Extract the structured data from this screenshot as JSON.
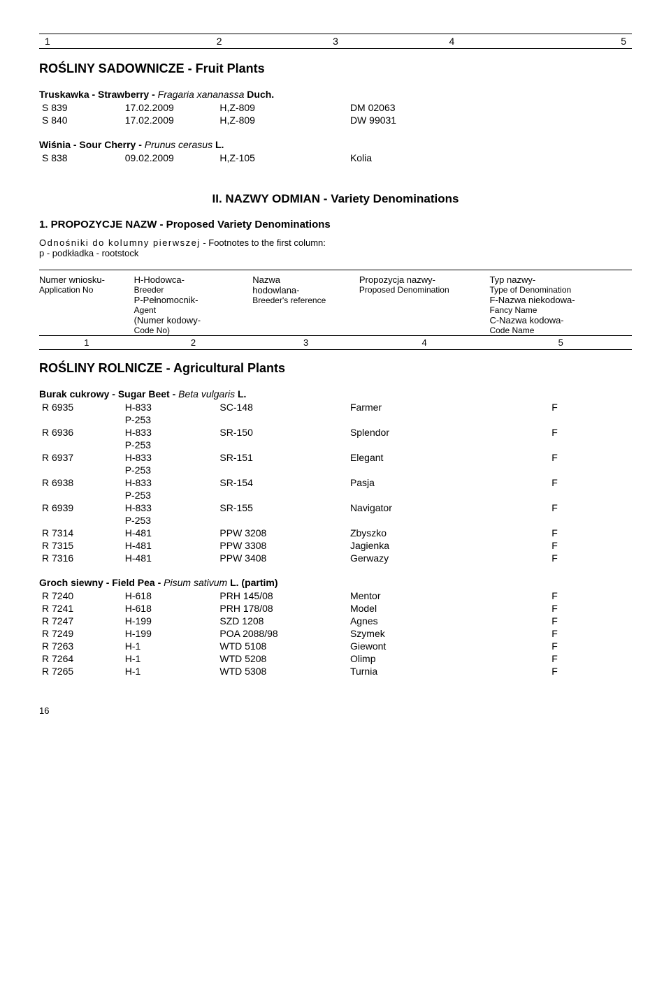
{
  "header_cols": [
    "1",
    "2",
    "3",
    "4",
    "5"
  ],
  "section1": {
    "title": "ROŚLINY SADOWNICZE - Fruit Plants",
    "species": [
      {
        "name_prefix": "Truskawka - Strawberry - ",
        "latin": "Fragaria xananassa",
        "latin_suffix": " Duch.",
        "rows": [
          {
            "c1": "S 839",
            "c2": "17.02.2009",
            "c3": "H,Z-809",
            "c4": "DM 02063",
            "c5": ""
          },
          {
            "c1": "S 840",
            "c2": "17.02.2009",
            "c3": "H,Z-809",
            "c4": "DW 99031",
            "c5": ""
          }
        ]
      },
      {
        "name_prefix": "Wiśnia - Sour Cherry - ",
        "latin": "Prunus cerasus",
        "latin_suffix": " L.",
        "rows": [
          {
            "c1": "S 838",
            "c2": "09.02.2009",
            "c3": "H,Z-105",
            "c4": "Kolia",
            "c5": ""
          }
        ]
      }
    ]
  },
  "section2_heading": "II. NAZWY ODMIAN - Variety Denominations",
  "section2_sub": "1. PROPOZYCJE NAZW - Proposed Variety Denominations",
  "footnote1_spaced": "Odnośniki do kolumny pierwszej",
  "footnote1_rest": " - Footnotes to the first column:",
  "footnote2": "p - podkładka - rootstock",
  "defs": {
    "c1_a": "Numer wniosku-",
    "c1_b": "Application No",
    "c2_a": "H-Hodowca-",
    "c2_b": "Breeder",
    "c2_c": "P-Pełnomocnik-",
    "c2_d": "Agent",
    "c2_e": "(Numer kodowy-",
    "c2_f": "Code No)",
    "c3_a": "Nazwa",
    "c3_b": "hodowlana-",
    "c3_c": "Breeder's reference",
    "c4_a": "Propozycja nazwy-",
    "c4_b": "Proposed Denomination",
    "c5_a": "Typ nazwy-",
    "c5_b": "Type of Denomination",
    "c5_c": "F-Nazwa niekodowa-",
    "c5_d": "Fancy Name",
    "c5_e": "C-Nazwa kodowa-",
    "c5_f": "Code Name"
  },
  "def_nums": [
    "1",
    "2",
    "3",
    "4",
    "5"
  ],
  "section3": {
    "title": "ROŚLINY ROLNICZE - Agricultural Plants",
    "species": [
      {
        "name_prefix": "Burak cukrowy - Sugar Beet - ",
        "latin": "Beta vulgaris",
        "latin_suffix": " L.",
        "rows": [
          {
            "c1": "R 6935",
            "c2": "H-833",
            "c3": "SC-148",
            "c4": "Farmer",
            "c5": "F"
          },
          {
            "c1": "",
            "c2": "P-253",
            "c3": "",
            "c4": "",
            "c5": ""
          },
          {
            "c1": "R 6936",
            "c2": "H-833",
            "c3": "SR-150",
            "c4": "Splendor",
            "c5": "F"
          },
          {
            "c1": "",
            "c2": "P-253",
            "c3": "",
            "c4": "",
            "c5": ""
          },
          {
            "c1": "R 6937",
            "c2": "H-833",
            "c3": "SR-151",
            "c4": "Elegant",
            "c5": "F"
          },
          {
            "c1": "",
            "c2": "P-253",
            "c3": "",
            "c4": "",
            "c5": ""
          },
          {
            "c1": "R 6938",
            "c2": "H-833",
            "c3": "SR-154",
            "c4": "Pasja",
            "c5": "F"
          },
          {
            "c1": "",
            "c2": "P-253",
            "c3": "",
            "c4": "",
            "c5": ""
          },
          {
            "c1": "R 6939",
            "c2": "H-833",
            "c3": "SR-155",
            "c4": "Navigator",
            "c5": "F"
          },
          {
            "c1": "",
            "c2": "P-253",
            "c3": "",
            "c4": "",
            "c5": ""
          },
          {
            "c1": "R 7314",
            "c2": "H-481",
            "c3": "PPW 3208",
            "c4": "Zbyszko",
            "c5": "F"
          },
          {
            "c1": "R 7315",
            "c2": "H-481",
            "c3": "PPW 3308",
            "c4": "Jagienka",
            "c5": "F"
          },
          {
            "c1": "R 7316",
            "c2": "H-481",
            "c3": "PPW 3408",
            "c4": "Gerwazy",
            "c5": "F"
          }
        ]
      },
      {
        "name_prefix": "Groch siewny - Field Pea - ",
        "latin": "Pisum sativum",
        "latin_suffix": " L. (partim)",
        "rows": [
          {
            "c1": "R 7240",
            "c2": "H-618",
            "c3": "PRH 145/08",
            "c4": "Mentor",
            "c5": "F"
          },
          {
            "c1": "R 7241",
            "c2": "H-618",
            "c3": "PRH 178/08",
            "c4": "Model",
            "c5": "F"
          },
          {
            "c1": "R 7247",
            "c2": "H-199",
            "c3": "SZD 1208",
            "c4": "Agnes",
            "c5": "F"
          },
          {
            "c1": "R 7249",
            "c2": "H-199",
            "c3": "POA 2088/98",
            "c4": "Szymek",
            "c5": "F"
          },
          {
            "c1": "R 7263",
            "c2": "H-1",
            "c3": "WTD 5108",
            "c4": "Giewont",
            "c5": "F"
          },
          {
            "c1": "R 7264",
            "c2": "H-1",
            "c3": "WTD 5208",
            "c4": "Olimp",
            "c5": "F"
          },
          {
            "c1": "R 7265",
            "c2": "H-1",
            "c3": "WTD 5308",
            "c4": "Turnia",
            "c5": "F"
          }
        ]
      }
    ]
  },
  "page_number": "16"
}
